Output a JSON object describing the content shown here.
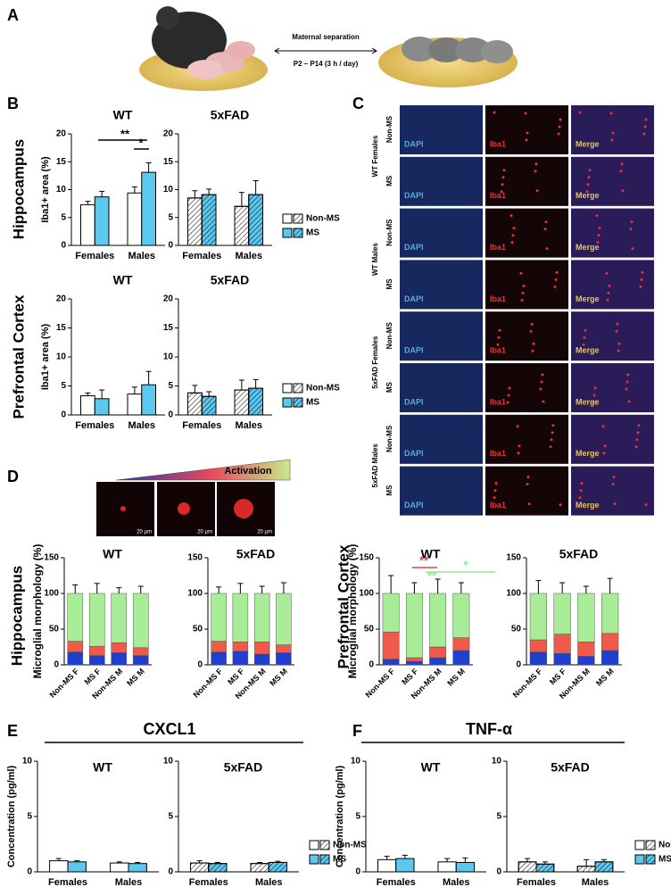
{
  "panel_labels": [
    "A",
    "B",
    "C",
    "D",
    "E",
    "F"
  ],
  "schematic": {
    "arrow_top": "Maternal separation",
    "arrow_bottom": "P2 – P14 (3 h / day)"
  },
  "region_labels": [
    "Hippocampus",
    "Prefrontal Cortex",
    "Hippocampus",
    "Prefrontal Cortex"
  ],
  "cytokine_titles": [
    "CXCL1",
    "TNF-α"
  ],
  "microscopy": {
    "channels": [
      "DAPI",
      "Iba1",
      "Merge"
    ],
    "groups": [
      "WT Females",
      "WT Males",
      "5xFAD Females",
      "5xFAD Males"
    ],
    "conditions": [
      "Non-MS",
      "MS"
    ]
  },
  "morphology": {
    "activation": "Activation",
    "scale": "20 µm"
  },
  "chart_data": [
    {
      "type": "bar",
      "title": "WT",
      "y_label": "Iba1+ area (%)",
      "categories": [
        "Females",
        "Males"
      ],
      "hatch": false,
      "series": [
        {
          "name": "Non-MS",
          "color": "#ffffff",
          "values": [
            7.3,
            9.4
          ],
          "errors": [
            0.6,
            1.1
          ]
        },
        {
          "name": "MS",
          "color": "#5bc8f0",
          "values": [
            8.7,
            13.1
          ],
          "errors": [
            1.0,
            1.7
          ]
        }
      ],
      "ylim": [
        0,
        20
      ],
      "yticks": [
        0,
        5,
        10,
        15,
        20
      ],
      "annotations": [
        {
          "text": "**",
          "color": "#000000"
        },
        {
          "text": "*",
          "color": "#000000"
        }
      ]
    },
    {
      "type": "bar",
      "title": "5xFAD",
      "categories": [
        "Females",
        "Males"
      ],
      "hatch": true,
      "legend": "right",
      "series": [
        {
          "name": "Non-MS",
          "color": "#ffffff",
          "values": [
            8.5,
            7.0
          ],
          "errors": [
            1.3,
            2.5
          ]
        },
        {
          "name": "MS",
          "color": "#5bc8f0",
          "values": [
            9.1,
            9.1
          ],
          "errors": [
            1.0,
            2.5
          ]
        }
      ],
      "ylim": [
        0,
        20
      ],
      "yticks": [
        0,
        5,
        10,
        15,
        20
      ]
    },
    {
      "type": "bar",
      "title": "WT",
      "y_label": "Iba1+ area (%)",
      "categories": [
        "Females",
        "Males"
      ],
      "hatch": false,
      "series": [
        {
          "name": "Non-MS",
          "color": "#ffffff",
          "values": [
            3.3,
            3.6
          ],
          "errors": [
            0.5,
            1.2
          ]
        },
        {
          "name": "MS",
          "color": "#5bc8f0",
          "values": [
            2.8,
            5.2
          ],
          "errors": [
            1.5,
            2.3
          ]
        }
      ],
      "ylim": [
        0,
        20
      ],
      "yticks": [
        0,
        5,
        10,
        15,
        20
      ]
    },
    {
      "type": "bar",
      "title": "5xFAD",
      "categories": [
        "Females",
        "Males"
      ],
      "hatch": true,
      "legend": "right",
      "series": [
        {
          "name": "Non-MS",
          "color": "#ffffff",
          "values": [
            3.8,
            4.3
          ],
          "errors": [
            1.3,
            1.7
          ]
        },
        {
          "name": "MS",
          "color": "#5bc8f0",
          "values": [
            3.2,
            4.6
          ],
          "errors": [
            0.8,
            1.5
          ]
        }
      ],
      "ylim": [
        0,
        20
      ],
      "yticks": [
        0,
        5,
        10,
        15,
        20
      ]
    },
    {
      "type": "stacked_bar",
      "title": "WT",
      "y_label": "Microglial morphology (%)",
      "categories": [
        "Non-MS F",
        "MS F",
        "Non-MS M",
        "MS M"
      ],
      "series": [
        {
          "color": "#1f3fd0",
          "values": [
            18,
            13,
            17,
            13
          ]
        },
        {
          "color": "#f05a4a",
          "values": [
            15,
            13,
            14,
            11
          ]
        },
        {
          "color": "#a8ec98",
          "values": [
            67,
            74,
            69,
            76
          ],
          "errors": [
            12,
            14,
            8,
            10
          ]
        }
      ],
      "ylim": [
        0,
        150
      ],
      "yticks": [
        0,
        50,
        100,
        150
      ]
    },
    {
      "type": "stacked_bar",
      "title": "5xFAD",
      "categories": [
        "Non-MS F",
        "MS F",
        "Non-MS M",
        "MS M"
      ],
      "series": [
        {
          "color": "#1f3fd0",
          "values": [
            18,
            19,
            15,
            17
          ]
        },
        {
          "color": "#f05a4a",
          "values": [
            15,
            13,
            17,
            11
          ]
        },
        {
          "color": "#a8ec98",
          "values": [
            67,
            68,
            68,
            72
          ],
          "errors": [
            9,
            14,
            10,
            15
          ]
        }
      ],
      "ylim": [
        0,
        150
      ],
      "yticks": [
        0,
        50,
        100,
        150
      ]
    },
    {
      "type": "stacked_bar",
      "title": "WT",
      "y_label": "Microglial morphology (%)",
      "categories": [
        "Non-MS F",
        "MS F",
        "Non-MS M",
        "MS M"
      ],
      "series": [
        {
          "color": "#1f3fd0",
          "values": [
            8,
            5,
            10,
            20
          ]
        },
        {
          "color": "#f05a4a",
          "values": [
            38,
            5,
            15,
            18
          ]
        },
        {
          "color": "#a8ec98",
          "values": [
            54,
            90,
            75,
            62
          ],
          "errors": [
            25,
            15,
            20,
            15
          ]
        }
      ],
      "ylim": [
        0,
        150
      ],
      "yticks": [
        0,
        50,
        100,
        150
      ],
      "annotations": [
        {
          "text": "**",
          "color": "#e8404a"
        },
        {
          "text": "**",
          "color": "#90e890"
        },
        {
          "text": "*",
          "color": "#90e890"
        }
      ]
    },
    {
      "type": "stacked_bar",
      "title": "5xFAD",
      "categories": [
        "Non-MS F",
        "MS F",
        "Non-MS M",
        "MS M"
      ],
      "series": [
        {
          "color": "#1f3fd0",
          "values": [
            18,
            16,
            12,
            20
          ]
        },
        {
          "color": "#f05a4a",
          "values": [
            17,
            27,
            20,
            24
          ]
        },
        {
          "color": "#a8ec98",
          "values": [
            65,
            57,
            68,
            56
          ],
          "errors": [
            18,
            15,
            10,
            21
          ]
        }
      ],
      "ylim": [
        0,
        150
      ],
      "yticks": [
        0,
        50,
        100,
        150
      ]
    },
    {
      "type": "bar",
      "title": "WT",
      "y_label": "Concentration (pg/ml)",
      "categories": [
        "Females",
        "Males"
      ],
      "hatch": false,
      "series": [
        {
          "name": "Non-MS",
          "color": "#ffffff",
          "values": [
            1.0,
            0.8
          ],
          "errors": [
            0.2,
            0.1
          ]
        },
        {
          "name": "MS",
          "color": "#5bc8f0",
          "values": [
            0.9,
            0.75
          ],
          "errors": [
            0.1,
            0.1
          ]
        }
      ],
      "ylim": [
        0,
        10
      ],
      "yticks": [
        0,
        5,
        10
      ]
    },
    {
      "type": "bar",
      "title": "5xFAD",
      "categories": [
        "Females",
        "Males"
      ],
      "hatch": true,
      "legend": "right",
      "series": [
        {
          "name": "Non-MS",
          "color": "#ffffff",
          "values": [
            0.8,
            0.75
          ],
          "errors": [
            0.2,
            0.1
          ]
        },
        {
          "name": "MS",
          "color": "#5bc8f0",
          "values": [
            0.75,
            0.85
          ],
          "errors": [
            0.1,
            0.1
          ]
        }
      ],
      "ylim": [
        0,
        10
      ],
      "yticks": [
        0,
        5,
        10
      ]
    },
    {
      "type": "bar",
      "title": "WT",
      "y_label": "Concentration (pg/ml)",
      "categories": [
        "Females",
        "Males"
      ],
      "hatch": false,
      "series": [
        {
          "name": "Non-MS",
          "color": "#ffffff",
          "values": [
            1.1,
            0.9
          ],
          "errors": [
            0.3,
            0.3
          ]
        },
        {
          "name": "MS",
          "color": "#5bc8f0",
          "values": [
            1.2,
            0.85
          ],
          "errors": [
            0.3,
            0.4
          ]
        }
      ],
      "ylim": [
        0,
        10
      ],
      "yticks": [
        0,
        5,
        10
      ]
    },
    {
      "type": "bar",
      "title": "5xFAD",
      "categories": [
        "Females",
        "Males"
      ],
      "hatch": true,
      "legend": "right",
      "series": [
        {
          "name": "Non-MS",
          "color": "#ffffff",
          "values": [
            0.9,
            0.5
          ],
          "errors": [
            0.3,
            0.6
          ]
        },
        {
          "name": "MS",
          "color": "#5bc8f0",
          "values": [
            0.7,
            0.9
          ],
          "errors": [
            0.2,
            0.2
          ]
        }
      ],
      "ylim": [
        0,
        10
      ],
      "yticks": [
        0,
        5,
        10
      ]
    }
  ]
}
